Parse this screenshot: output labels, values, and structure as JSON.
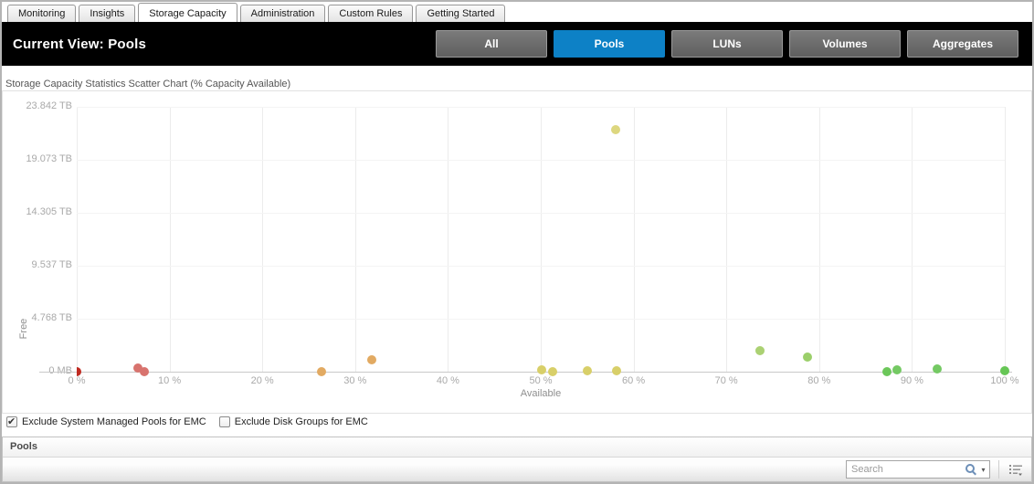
{
  "tabs": {
    "items": [
      {
        "label": "Monitoring",
        "active": false
      },
      {
        "label": "Insights",
        "active": false
      },
      {
        "label": "Storage Capacity",
        "active": true
      },
      {
        "label": "Administration",
        "active": false
      },
      {
        "label": "Custom Rules",
        "active": false
      },
      {
        "label": "Getting Started",
        "active": false
      }
    ]
  },
  "header": {
    "title": "Current View: Pools",
    "accent_color": "#0d81c6",
    "buttons": [
      {
        "label": "All",
        "active": false
      },
      {
        "label": "Pools",
        "active": true
      },
      {
        "label": "LUNs",
        "active": false
      },
      {
        "label": "Volumes",
        "active": false
      },
      {
        "label": "Aggregates",
        "active": false
      }
    ]
  },
  "chart": {
    "title": "Storage Capacity Statistics Scatter Chart (% Capacity Available)"
  },
  "chart_data": {
    "type": "scatter",
    "title": "Storage Capacity Statistics Scatter Chart (% Capacity Available)",
    "xlabel": "Available",
    "ylabel": "Free",
    "xlim": [
      0,
      100
    ],
    "ylim_tb": [
      0,
      23.842
    ],
    "x_ticks": [
      "0 %",
      "10 %",
      "20 %",
      "30 %",
      "40 %",
      "50 %",
      "60 %",
      "70 %",
      "80 %",
      "90 %",
      "100 %"
    ],
    "y_ticks": [
      "23.842 TB",
      "19.073 TB",
      "14.305 TB",
      "9.537 TB",
      "4.768 TB",
      "0 MB"
    ],
    "grid": true,
    "legend": false,
    "points": [
      {
        "available_pct": 0.0,
        "free_tb": 0.0,
        "color": "#bf2a21"
      },
      {
        "available_pct": 6.6,
        "free_tb": 0.33,
        "color": "#d8736e"
      },
      {
        "available_pct": 7.3,
        "free_tb": 0.04,
        "color": "#d8736e"
      },
      {
        "available_pct": 26.4,
        "free_tb": 0.02,
        "color": "#e2aa62"
      },
      {
        "available_pct": 31.8,
        "free_tb": 1.07,
        "color": "#e2aa62"
      },
      {
        "available_pct": 50.1,
        "free_tb": 0.16,
        "color": "#d8cf69"
      },
      {
        "available_pct": 51.3,
        "free_tb": 0.02,
        "color": "#d8cf69"
      },
      {
        "available_pct": 55.0,
        "free_tb": 0.1,
        "color": "#d8cf69"
      },
      {
        "available_pct": 58.1,
        "free_tb": 21.8,
        "color": "#ddd77f"
      },
      {
        "available_pct": 58.2,
        "free_tb": 0.1,
        "color": "#d8cf69"
      },
      {
        "available_pct": 73.6,
        "free_tb": 1.9,
        "color": "#abd173"
      },
      {
        "available_pct": 78.7,
        "free_tb": 1.32,
        "color": "#9bcf6a"
      },
      {
        "available_pct": 87.3,
        "free_tb": 0.04,
        "color": "#6cc75a"
      },
      {
        "available_pct": 88.4,
        "free_tb": 0.18,
        "color": "#74c963"
      },
      {
        "available_pct": 92.7,
        "free_tb": 0.26,
        "color": "#74c963"
      },
      {
        "available_pct": 100.0,
        "free_tb": 0.05,
        "color": "#66c655"
      }
    ]
  },
  "filters": {
    "exclude_pools": {
      "label": "Exclude System Managed Pools for EMC",
      "checked": true
    },
    "exclude_disk_groups": {
      "label": "Exclude Disk Groups for EMC",
      "checked": false
    }
  },
  "pools_panel": {
    "title": "Pools",
    "search_placeholder": "Search"
  }
}
